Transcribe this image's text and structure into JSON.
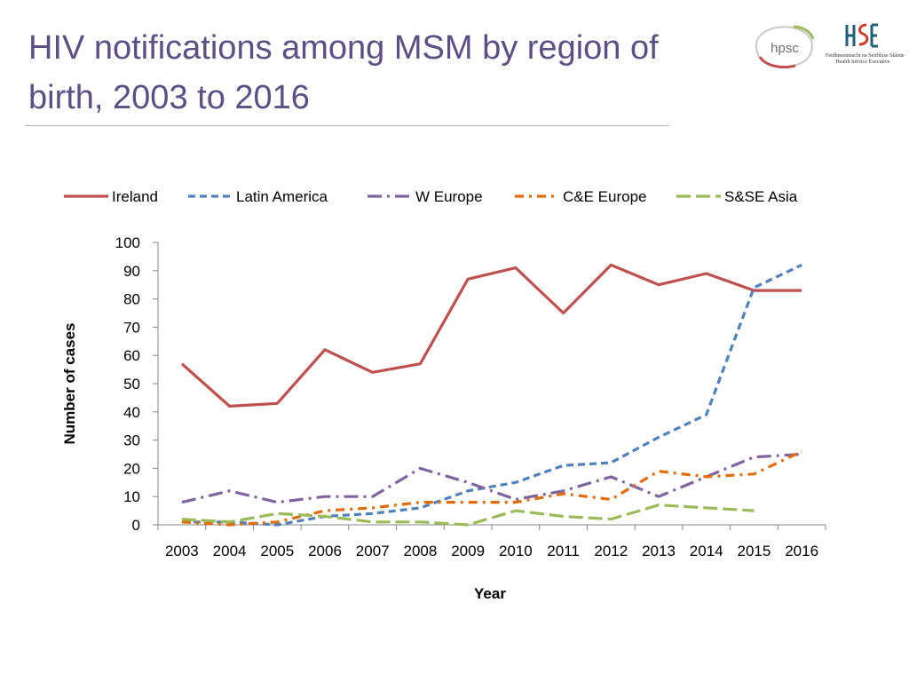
{
  "slide": {
    "title": "HIV notifications among MSM by region of birth, 2003 to 2016"
  },
  "logos": {
    "hpsc": "hpsc",
    "hse_line1": "Feidhmeannacht na Seirbhíse Sláinte",
    "hse_line2": "Health Service Executive"
  },
  "colors": {
    "title": "#5c4f86",
    "Ireland": "#c0504d",
    "Latin America": "#4f81bd",
    "W Europe": "#8064a2",
    "C&E Europe": "#e36c09",
    "S&SE Asia": "#9bbb59"
  },
  "chart_data": {
    "type": "line",
    "title": "",
    "xlabel": "Year",
    "ylabel": "Number of cases",
    "ylim": [
      0,
      100
    ],
    "yticks": [
      0,
      10,
      20,
      30,
      40,
      50,
      60,
      70,
      80,
      90,
      100
    ],
    "categories": [
      "2003",
      "2004",
      "2005",
      "2006",
      "2007",
      "2008",
      "2009",
      "2010",
      "2011",
      "2012",
      "2013",
      "2014",
      "2015",
      "2016"
    ],
    "legend_position": "top",
    "series": [
      {
        "name": "Ireland",
        "style": "solid",
        "values": [
          57,
          42,
          43,
          62,
          54,
          57,
          87,
          91,
          75,
          92,
          85,
          89,
          83,
          83
        ]
      },
      {
        "name": "Latin America",
        "style": "dash",
        "values": [
          1,
          1,
          0,
          3,
          4,
          6,
          12,
          15,
          21,
          22,
          31,
          39,
          84,
          92
        ]
      },
      {
        "name": "W Europe",
        "style": "longdashdot",
        "values": [
          8,
          12,
          8,
          10,
          10,
          20,
          15,
          9,
          12,
          17,
          10,
          17,
          24,
          25
        ]
      },
      {
        "name": "C&E Europe",
        "style": "dashdot",
        "values": [
          1,
          0,
          1,
          5,
          6,
          8,
          8,
          8,
          11,
          9,
          19,
          17,
          18,
          26
        ]
      },
      {
        "name": "S&SE Asia",
        "style": "longdash",
        "values": [
          2,
          1,
          4,
          3,
          1,
          1,
          0,
          5,
          3,
          2,
          7,
          6,
          5,
          null
        ]
      }
    ]
  }
}
